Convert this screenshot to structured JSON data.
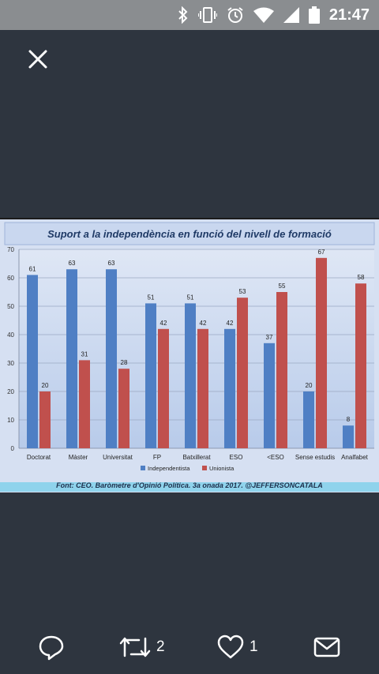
{
  "status_bar": {
    "time": "21:47",
    "icons": [
      "bluetooth-icon",
      "vibrate-icon",
      "alarm-icon",
      "wifi-icon",
      "signal-icon",
      "battery-icon"
    ]
  },
  "viewer": {
    "close_icon": "close-icon"
  },
  "chart_data": {
    "type": "bar",
    "title": "Suport a la independència  en funció del nivell de formació",
    "categories": [
      "Doctorat",
      "Màster",
      "Universitat",
      "FP",
      "Batxillerat",
      "ESO",
      "<ESO",
      "Sense estudis",
      "Analfabet"
    ],
    "series": [
      {
        "name": "Independentista",
        "values": [
          61,
          63,
          63,
          51,
          51,
          42,
          37,
          20,
          8
        ],
        "color": "#4f7fc4"
      },
      {
        "name": "Unionista",
        "values": [
          20,
          31,
          28,
          42,
          42,
          53,
          55,
          67,
          58
        ],
        "color": "#c0504d"
      }
    ],
    "ylim": [
      0,
      70
    ],
    "yticks": [
      0,
      10,
      20,
      30,
      40,
      50,
      60,
      70
    ],
    "grid": true,
    "legend": "bottom",
    "source": "Font: CEO. Baròmetre d'Opinió Política. 3a onada 2017. @JEFFERSONCATALA"
  },
  "actions": {
    "reply_icon": "reply-icon",
    "retweet_icon": "retweet-icon",
    "retweet_count": "2",
    "like_icon": "heart-icon",
    "like_count": "1",
    "message_icon": "message-icon"
  }
}
